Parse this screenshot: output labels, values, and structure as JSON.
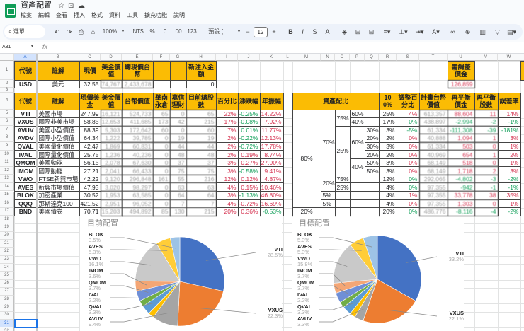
{
  "app": {
    "title": "資產配置",
    "menu": [
      "檔案",
      "編輯",
      "查看",
      "插入",
      "格式",
      "資料",
      "工具",
      "擴充功能",
      "說明"
    ]
  },
  "toolbar": {
    "search": "選單",
    "zoom": "100%",
    "currency": "NT$",
    "percent": "%",
    "dec_less": ".0",
    "dec_more": ".00",
    "number_format": "123",
    "font": "預設 (...",
    "font_size": "12",
    "icons": [
      "undo-icon",
      "redo-icon",
      "print-icon",
      "paint-format-icon",
      "bold-icon",
      "italic-icon",
      "strikethrough-icon",
      "text-color-icon",
      "fill-color-icon",
      "borders-icon",
      "merge-icon",
      "align-icon",
      "valign-icon",
      "wrap-icon",
      "rotate-icon",
      "link-icon",
      "comment-icon",
      "chart-icon",
      "filter-icon",
      "more-icon"
    ]
  },
  "formula_bar": {
    "cell_ref": "A31",
    "fx": "fx",
    "value": ""
  },
  "sheet": {
    "columns": [
      "A",
      "B",
      "C",
      "D",
      "E",
      "F",
      "G",
      "H",
      "I",
      "J",
      "K",
      "L",
      "M",
      "N",
      "O",
      "P",
      "Q",
      "R",
      "S",
      "T",
      "U",
      "V",
      "W",
      "X"
    ],
    "rows": [
      "1",
      "2",
      "3",
      "4",
      "5",
      "6",
      "7",
      "8",
      "9",
      "10",
      "11",
      "12",
      "13",
      "14",
      "15",
      "16",
      "17",
      "18",
      "19",
      "20",
      "21",
      "22",
      "23",
      "24",
      "25",
      "26",
      "27",
      "28",
      "29",
      "30",
      "31",
      "32"
    ],
    "selected_cell": "A31",
    "usd_headers": [
      "代號",
      "註解",
      "現價",
      "美金價值",
      "總現價台幣",
      "",
      "",
      "新注入金額"
    ],
    "usd_row": [
      "USD",
      "美元",
      "32.55",
      "74,767",
      "2,433,678",
      "",
      "",
      "0"
    ],
    "adjust_header": "需調整價金",
    "adjust_value": "126,859",
    "holdings_headers": [
      "代號",
      "註解",
      "現價美金",
      "美金價值",
      "台幣價值",
      "華南永倉",
      "嘉信理財",
      "目前總股數",
      "百分比",
      "漲跌幅",
      "年振幅"
    ],
    "holdings": [
      {
        "v": [
          "VTI",
          "美國市場",
          "247.99",
          "16,121",
          "524,733",
          "65",
          "0",
          "65",
          "22%",
          "-0.25%",
          "14.22%"
        ],
        "change_tone": "green",
        "range_tone": "red"
      },
      {
        "v": [
          "VXUS",
          "國際非美市場",
          "58.85",
          "12,653",
          "411,685",
          "173",
          "42",
          "215",
          "17%",
          "-0.08%",
          "7.92%"
        ],
        "change_tone": "green",
        "range_tone": "red"
      },
      {
        "v": [
          "AVUV",
          "美國小型價值",
          "88.39",
          "5,303",
          "172,642",
          "60",
          "0",
          "60",
          "7%",
          "0.01%",
          "11.77%"
        ],
        "change_tone": "green",
        "range_tone": "red"
      },
      {
        "v": [
          "AVDV",
          "國際小型價值",
          "64.34",
          "1,222",
          "39,785",
          "0",
          "19",
          "19",
          "2%",
          "-0.22%",
          "12.13%"
        ],
        "change_tone": "green",
        "range_tone": "red"
      },
      {
        "v": [
          "QVAL",
          "美國量化價值",
          "42.47",
          "1,869",
          "60,831",
          "0",
          "44",
          "44",
          "2%",
          "-0.72%",
          "17.78%"
        ],
        "change_tone": "green",
        "range_tone": "red"
      },
      {
        "v": [
          "IVAL",
          "國際量化價值",
          "25.75",
          "1,236",
          "40,236",
          "0",
          "48",
          "48",
          "2%",
          "0.19%",
          "8.74%"
        ],
        "change_tone": "red",
        "range_tone": "red"
      },
      {
        "v": [
          "QMOM",
          "美國動能",
          "56.15",
          "2,078",
          "67,630",
          "0",
          "37",
          "37",
          "3%",
          "0.27%",
          "27.90%"
        ],
        "change_tone": "red",
        "range_tone": "red"
      },
      {
        "v": [
          "IMOM",
          "國際動能",
          "27.21",
          "2,041",
          "66,433",
          "0",
          "75",
          "75",
          "3%",
          "-0.58%",
          "9.41%"
        ],
        "change_tone": "green",
        "range_tone": "red"
      },
      {
        "v": [
          "VWO",
          "FTSE新興市場",
          "42.22",
          "9,120",
          "296,848",
          "161",
          "55",
          "216",
          "12%",
          "0.12%",
          "4.87%"
        ],
        "change_tone": "red",
        "range_tone": "red"
      },
      {
        "v": [
          "AVES",
          "新興市場價值",
          "47.93",
          "3,020",
          "98,297",
          "0",
          "63",
          "63",
          "4%",
          "0.15%",
          "10.46%"
        ],
        "change_tone": "red",
        "range_tone": "red"
      },
      {
        "v": [
          "BLOK",
          "加密產業",
          "30.52",
          "1,953",
          "63,585",
          "0",
          "64",
          "64",
          "3%",
          "-1.13%",
          "46.80%"
        ],
        "change_tone": "green",
        "range_tone": "red"
      },
      {
        "v": [
          "QQQ",
          "那斯達克100",
          "421.52",
          "2,951",
          "96,052",
          "0",
          "7",
          "7",
          "4%",
          "-0.72%",
          "16.69%"
        ],
        "change_tone": "red",
        "range_tone": "red"
      },
      {
        "v": [
          "BND",
          "美國債卷",
          "70.71",
          "15,203",
          "494,892",
          "85",
          "130",
          "215",
          "20%",
          "0.36%",
          "-0.53%"
        ],
        "change_tone": "red",
        "range_tone": "green"
      }
    ],
    "alloc_header": "資產配比",
    "alloc_headers": [
      "100%",
      "調整百分比",
      "計畫台幣價值",
      "再平衡價金",
      "再平衡股數",
      "誤差率"
    ],
    "alloc_rows": [
      {
        "v": [
          "25%",
          "4%",
          "613,357",
          "88,604",
          "11",
          "14%"
        ],
        "adj_tone": "red",
        "tone": "red"
      },
      {
        "v": [
          "17%",
          "0%",
          "438,897",
          "-2,994",
          "-2",
          "-1%"
        ],
        "adj_tone": "green",
        "tone": "green"
      },
      {
        "v": [
          "3%",
          "-5%",
          "61,334",
          "-111,308",
          "-39",
          "-181%"
        ],
        "adj_tone": "green",
        "tone": "green"
      },
      {
        "v": [
          "2%",
          "0%",
          "40,888",
          "1,094",
          "1",
          "3%"
        ],
        "adj_tone": "red",
        "tone": "red"
      },
      {
        "v": [
          "3%",
          "0%",
          "61,334",
          "503",
          "0",
          "1%"
        ],
        "adj_tone": "red",
        "tone": "red"
      },
      {
        "v": [
          "2%",
          "0%",
          "40,969",
          "654",
          "1",
          "2%"
        ],
        "adj_tone": "red",
        "tone": "red"
      },
      {
        "v": [
          "3%",
          "0%",
          "68,149",
          "518",
          "0",
          "1%"
        ],
        "adj_tone": "red",
        "tone": "red"
      },
      {
        "v": [
          "3%",
          "0%",
          "68,149",
          "1,718",
          "2",
          "3%"
        ],
        "adj_tone": "red",
        "tone": "red"
      },
      {
        "v": [
          "12%",
          "0%",
          "292,065",
          "-4,802",
          "-3",
          "-2%"
        ],
        "adj_tone": "green",
        "tone": "green"
      },
      {
        "v": [
          "4%",
          "0%",
          "97,355",
          "-942",
          "-1",
          "-1%"
        ],
        "adj_tone": "green",
        "tone": "green"
      },
      {
        "v": [
          "4%",
          "1%",
          "97,355",
          "33,778",
          "38",
          "35%"
        ],
        "adj_tone": "red",
        "tone": "red"
      },
      {
        "v": [
          "4%",
          "0%",
          "97,355",
          "1,303",
          "0",
          "1%"
        ],
        "adj_tone": "red",
        "tone": "red"
      },
      {
        "v": [
          "20%",
          "0%",
          "486,776",
          "-8,116",
          "-4",
          "-2%"
        ],
        "adj_tone": "green",
        "tone": "green"
      }
    ],
    "tree": {
      "m": [
        "80%",
        "20%"
      ],
      "n": [
        "70%",
        "20%",
        "5%",
        "5%"
      ],
      "o": [
        "75%",
        "25%",
        "75%",
        "25%"
      ],
      "p": [
        "60%",
        "40%",
        "60%",
        "40%"
      ],
      "q": [
        "30%",
        "20%",
        "30%",
        "20%",
        "50%",
        "50%"
      ]
    }
  },
  "chart_data": [
    {
      "type": "pie",
      "title": "目前配置",
      "slices": [
        {
          "label": "VTI",
          "value": 28.5,
          "pct": "28.5%",
          "color": "#4472c4"
        },
        {
          "label": "VXUS",
          "value": 22.3,
          "pct": "22.3%",
          "color": "#ed7d31"
        },
        {
          "label": "AVUV",
          "value": 9.4,
          "pct": "9.4%",
          "color": "#a5a5a5"
        },
        {
          "label": "AVDV",
          "value": 2.1,
          "pct": "",
          "color": "#ffc000"
        },
        {
          "label": "QVAL",
          "value": 3.3,
          "pct": "3.3%",
          "color": "#5b9bd5"
        },
        {
          "label": "IVAL",
          "value": 2.2,
          "pct": "2.2%",
          "color": "#70ad47"
        },
        {
          "label": "QMOM",
          "value": 3.7,
          "pct": "3.7%",
          "color": "#6f8fd6"
        },
        {
          "label": "IMOM",
          "value": 3.6,
          "pct": "3.6%",
          "color": "#f4a675"
        },
        {
          "label": "VWO",
          "value": 16.1,
          "pct": "16.1%",
          "color": "#c9c9c9"
        },
        {
          "label": "AVES",
          "value": 5.3,
          "pct": "5.3%",
          "color": "#ffcd38"
        },
        {
          "label": "BLOK",
          "value": 3.5,
          "pct": "3.5%",
          "color": "#9dc3e6"
        }
      ]
    },
    {
      "type": "pie",
      "title": "目標配置",
      "slices": [
        {
          "label": "VTI",
          "value": 33.2,
          "pct": "33.2%",
          "color": "#4472c4"
        },
        {
          "label": "VXUS",
          "value": 22.1,
          "pct": "22.1%",
          "color": "#ed7d31"
        },
        {
          "label": "AVUV",
          "value": 3.3,
          "pct": "3.3%",
          "color": "#a5a5a5"
        },
        {
          "label": "AVDV",
          "value": 2.1,
          "pct": "",
          "color": "#ffc000"
        },
        {
          "label": "QVAL",
          "value": 3.3,
          "pct": "3.3%",
          "color": "#5b9bd5"
        },
        {
          "label": "IVAL",
          "value": 2.2,
          "pct": "2.2%",
          "color": "#70ad47"
        },
        {
          "label": "QMOM",
          "value": 3.7,
          "pct": "3.7%",
          "color": "#6f8fd6"
        },
        {
          "label": "IMOM",
          "value": 3.7,
          "pct": "3.7%",
          "color": "#f4a675"
        },
        {
          "label": "VWO",
          "value": 15.8,
          "pct": "15.8%",
          "color": "#c9c9c9"
        },
        {
          "label": "AVES",
          "value": 5.3,
          "pct": "5.3%",
          "color": "#ffcd38"
        },
        {
          "label": "BLOK",
          "value": 5.3,
          "pct": "5.3%",
          "color": "#9dc3e6"
        }
      ]
    }
  ]
}
